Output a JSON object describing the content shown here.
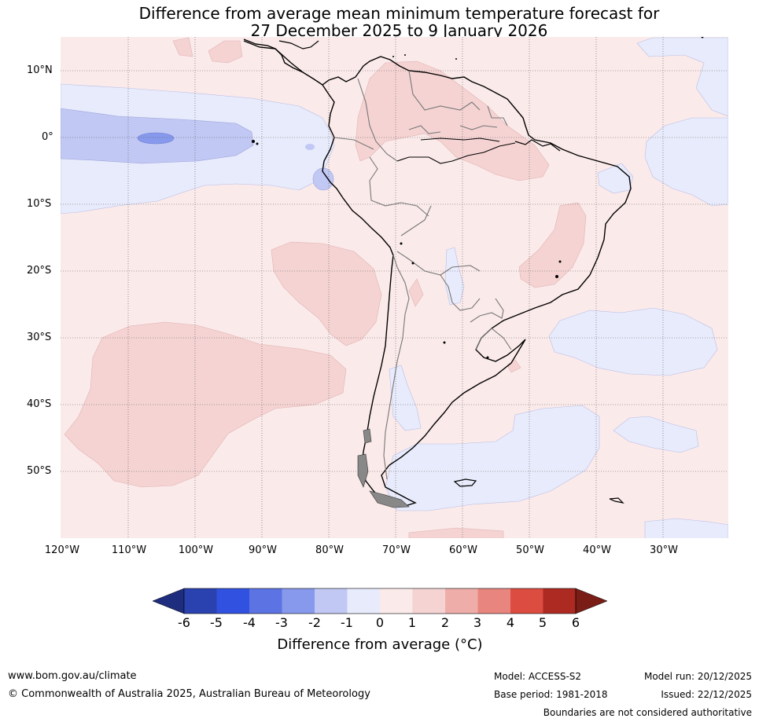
{
  "title_line1": "Difference from average mean minimum temperature forecast for",
  "title_line2": "27 December 2025 to 9 January 2026",
  "lat_labels": [
    "10°N",
    "0°",
    "10°S",
    "20°S",
    "30°S",
    "40°S",
    "50°S"
  ],
  "lon_labels": [
    "120°W",
    "110°W",
    "100°W",
    "90°W",
    "80°W",
    "70°W",
    "60°W",
    "50°W",
    "40°W",
    "30°W"
  ],
  "colorbar": {
    "ticks": [
      "-6",
      "-5",
      "-4",
      "-3",
      "-2",
      "-1",
      "0",
      "1",
      "2",
      "3",
      "4",
      "5",
      "6"
    ],
    "colors": [
      "#2a41b0",
      "#3152e0",
      "#5c73e3",
      "#8799ec",
      "#c1c8f3",
      "#e8ebfb",
      "#fbeaea",
      "#f5d3d3",
      "#eeada9",
      "#e8857e",
      "#dc4c40",
      "#ad2a22"
    ],
    "under_color": "#1f2d7e",
    "over_color": "#7a1d17",
    "label": "Difference from average (°C)"
  },
  "footer": {
    "url": "www.bom.gov.au/climate",
    "copyright": "© Commonwealth of Australia 2025, Australian Bureau of Meteorology",
    "model": "Model: ACCESS-S2",
    "base_period": "Base period: 1981-2018",
    "model_run": "Model run: 20/12/2025",
    "issued": "Issued: 22/12/2025",
    "disclaimer": "Boundaries are not considered authoritative"
  }
}
